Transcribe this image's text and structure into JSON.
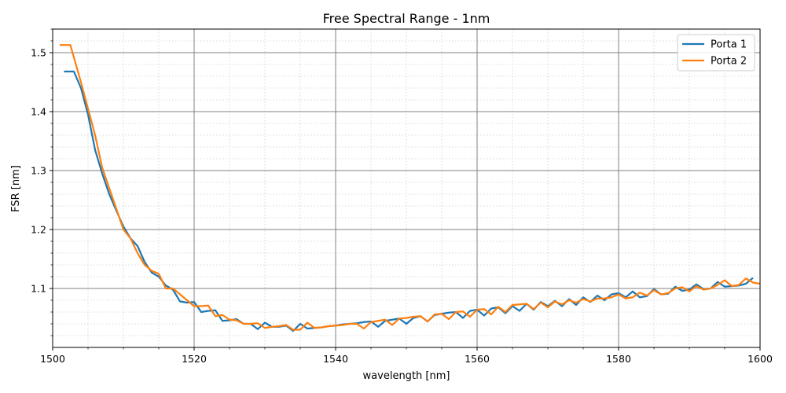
{
  "chart_data": {
    "type": "line",
    "title": "Free Spectral Range - 1nm",
    "xlabel": "wavelength [nm]",
    "ylabel": "FSR [nm]",
    "xlim": [
      1500,
      1600
    ],
    "ylim": [
      1.0,
      1.54
    ],
    "xticks": [
      1500,
      1520,
      1540,
      1560,
      1580,
      1600
    ],
    "yticks": [
      1.1,
      1.2,
      1.3,
      1.4,
      1.5
    ],
    "major_grid": true,
    "minor_grid": true,
    "legend_position": "top-right",
    "series": [
      {
        "name": "Porta 1",
        "color": "#1f77b4",
        "points": [
          [
            1501.6,
            1.468
          ],
          [
            1503,
            1.468
          ],
          [
            1504,
            1.44
          ],
          [
            1505,
            1.395
          ],
          [
            1506,
            1.335
          ],
          [
            1507,
            1.295
          ],
          [
            1508,
            1.26
          ],
          [
            1509,
            1.232
          ],
          [
            1510,
            1.205
          ],
          [
            1511,
            1.185
          ],
          [
            1512,
            1.172
          ],
          [
            1513,
            1.145
          ],
          [
            1514,
            1.127
          ],
          [
            1515,
            1.12
          ],
          [
            1516,
            1.105
          ],
          [
            1517,
            1.098
          ],
          [
            1518,
            1.078
          ],
          [
            1519,
            1.076
          ],
          [
            1520,
            1.077
          ],
          [
            1521,
            1.06
          ],
          [
            1522,
            1.062
          ],
          [
            1523,
            1.063
          ],
          [
            1524,
            1.045
          ],
          [
            1525,
            1.046
          ],
          [
            1526,
            1.048
          ],
          [
            1527,
            1.04
          ],
          [
            1528,
            1.04
          ],
          [
            1529,
            1.031
          ],
          [
            1530,
            1.042
          ],
          [
            1531,
            1.035
          ],
          [
            1532,
            1.035
          ],
          [
            1533,
            1.037
          ],
          [
            1534,
            1.028
          ],
          [
            1535,
            1.04
          ],
          [
            1536,
            1.032
          ],
          [
            1537,
            1.033
          ],
          [
            1538,
            1.034
          ],
          [
            1539,
            1.036
          ],
          [
            1540,
            1.037
          ],
          [
            1541,
            1.039
          ],
          [
            1542,
            1.04
          ],
          [
            1543,
            1.041
          ],
          [
            1544,
            1.043
          ],
          [
            1545,
            1.044
          ],
          [
            1546,
            1.035
          ],
          [
            1547,
            1.045
          ],
          [
            1548,
            1.047
          ],
          [
            1549,
            1.049
          ],
          [
            1550,
            1.04
          ],
          [
            1551,
            1.05
          ],
          [
            1552,
            1.053
          ],
          [
            1553,
            1.044
          ],
          [
            1554,
            1.055
          ],
          [
            1555,
            1.057
          ],
          [
            1556,
            1.059
          ],
          [
            1557,
            1.06
          ],
          [
            1558,
            1.05
          ],
          [
            1559,
            1.062
          ],
          [
            1560,
            1.064
          ],
          [
            1561,
            1.054
          ],
          [
            1562,
            1.066
          ],
          [
            1563,
            1.068
          ],
          [
            1564,
            1.058
          ],
          [
            1565,
            1.07
          ],
          [
            1566,
            1.062
          ],
          [
            1567,
            1.074
          ],
          [
            1568,
            1.064
          ],
          [
            1569,
            1.077
          ],
          [
            1570,
            1.07
          ],
          [
            1571,
            1.079
          ],
          [
            1572,
            1.07
          ],
          [
            1573,
            1.082
          ],
          [
            1574,
            1.072
          ],
          [
            1575,
            1.085
          ],
          [
            1576,
            1.077
          ],
          [
            1577,
            1.088
          ],
          [
            1578,
            1.08
          ],
          [
            1579,
            1.09
          ],
          [
            1580,
            1.092
          ],
          [
            1581,
            1.085
          ],
          [
            1582,
            1.095
          ],
          [
            1583,
            1.085
          ],
          [
            1584,
            1.087
          ],
          [
            1585,
            1.099
          ],
          [
            1586,
            1.09
          ],
          [
            1587,
            1.091
          ],
          [
            1588,
            1.103
          ],
          [
            1589,
            1.096
          ],
          [
            1590,
            1.098
          ],
          [
            1591,
            1.107
          ],
          [
            1592,
            1.099
          ],
          [
            1593,
            1.1
          ],
          [
            1594,
            1.111
          ],
          [
            1595,
            1.103
          ],
          [
            1596,
            1.104
          ],
          [
            1597,
            1.105
          ],
          [
            1598,
            1.108
          ],
          [
            1599,
            1.118
          ]
        ]
      },
      {
        "name": "Porta 2",
        "color": "#ff7f0e",
        "points": [
          [
            1501,
            1.513
          ],
          [
            1502.5,
            1.513
          ],
          [
            1504,
            1.45
          ],
          [
            1505,
            1.405
          ],
          [
            1506,
            1.36
          ],
          [
            1507,
            1.305
          ],
          [
            1508,
            1.27
          ],
          [
            1509,
            1.235
          ],
          [
            1510,
            1.2
          ],
          [
            1511,
            1.185
          ],
          [
            1512,
            1.16
          ],
          [
            1513,
            1.14
          ],
          [
            1514,
            1.13
          ],
          [
            1515,
            1.125
          ],
          [
            1516,
            1.1
          ],
          [
            1517,
            1.1
          ],
          [
            1518,
            1.09
          ],
          [
            1519,
            1.08
          ],
          [
            1520,
            1.07
          ],
          [
            1521,
            1.07
          ],
          [
            1522,
            1.071
          ],
          [
            1523,
            1.053
          ],
          [
            1524,
            1.055
          ],
          [
            1525,
            1.047
          ],
          [
            1526,
            1.046
          ],
          [
            1527,
            1.04
          ],
          [
            1528,
            1.04
          ],
          [
            1529,
            1.041
          ],
          [
            1530,
            1.033
          ],
          [
            1531,
            1.035
          ],
          [
            1532,
            1.036
          ],
          [
            1533,
            1.038
          ],
          [
            1534,
            1.03
          ],
          [
            1535,
            1.03
          ],
          [
            1536,
            1.042
          ],
          [
            1537,
            1.033
          ],
          [
            1538,
            1.034
          ],
          [
            1539,
            1.036
          ],
          [
            1540,
            1.037
          ],
          [
            1541,
            1.038
          ],
          [
            1542,
            1.04
          ],
          [
            1543,
            1.04
          ],
          [
            1544,
            1.032
          ],
          [
            1545,
            1.043
          ],
          [
            1546,
            1.045
          ],
          [
            1547,
            1.047
          ],
          [
            1548,
            1.038
          ],
          [
            1549,
            1.049
          ],
          [
            1550,
            1.05
          ],
          [
            1551,
            1.052
          ],
          [
            1552,
            1.053
          ],
          [
            1553,
            1.044
          ],
          [
            1554,
            1.056
          ],
          [
            1555,
            1.057
          ],
          [
            1556,
            1.048
          ],
          [
            1557,
            1.06
          ],
          [
            1558,
            1.061
          ],
          [
            1559,
            1.052
          ],
          [
            1560,
            1.064
          ],
          [
            1561,
            1.065
          ],
          [
            1562,
            1.056
          ],
          [
            1563,
            1.069
          ],
          [
            1564,
            1.06
          ],
          [
            1565,
            1.072
          ],
          [
            1566,
            1.073
          ],
          [
            1567,
            1.074
          ],
          [
            1568,
            1.065
          ],
          [
            1569,
            1.076
          ],
          [
            1570,
            1.068
          ],
          [
            1571,
            1.078
          ],
          [
            1572,
            1.073
          ],
          [
            1573,
            1.08
          ],
          [
            1574,
            1.076
          ],
          [
            1575,
            1.082
          ],
          [
            1576,
            1.078
          ],
          [
            1577,
            1.083
          ],
          [
            1578,
            1.083
          ],
          [
            1579,
            1.085
          ],
          [
            1580,
            1.09
          ],
          [
            1581,
            1.083
          ],
          [
            1582,
            1.085
          ],
          [
            1583,
            1.093
          ],
          [
            1584,
            1.088
          ],
          [
            1585,
            1.097
          ],
          [
            1586,
            1.09
          ],
          [
            1587,
            1.092
          ],
          [
            1588,
            1.1
          ],
          [
            1589,
            1.102
          ],
          [
            1590,
            1.095
          ],
          [
            1591,
            1.104
          ],
          [
            1592,
            1.098
          ],
          [
            1593,
            1.1
          ],
          [
            1594,
            1.106
          ],
          [
            1595,
            1.114
          ],
          [
            1596,
            1.104
          ],
          [
            1597,
            1.106
          ],
          [
            1598,
            1.117
          ],
          [
            1599,
            1.11
          ],
          [
            1600,
            1.108
          ]
        ]
      }
    ]
  }
}
